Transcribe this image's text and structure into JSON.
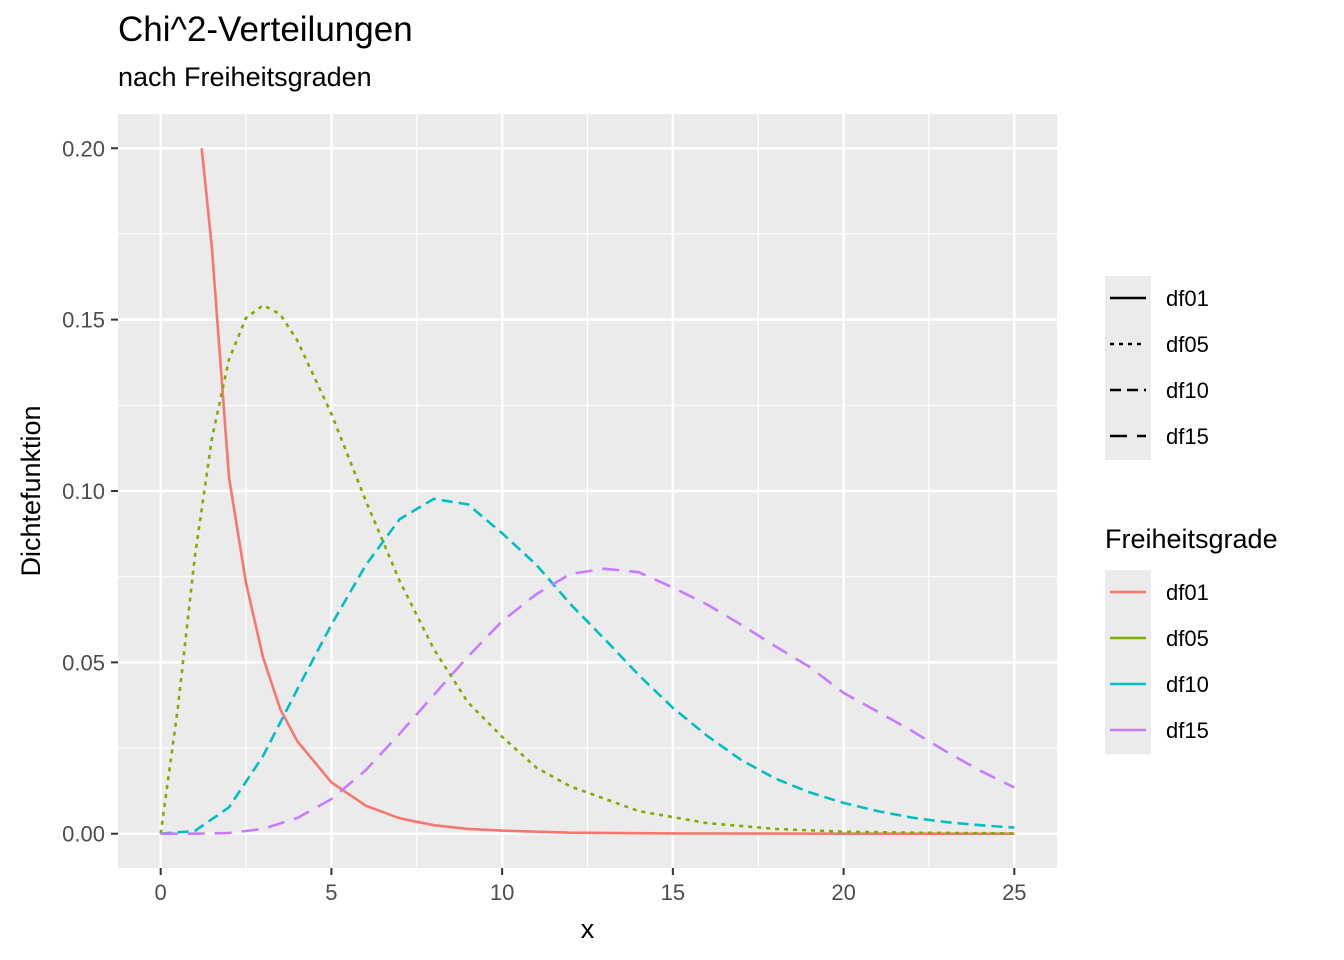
{
  "chart_data": {
    "type": "line",
    "title": "Chi^2-Verteilungen",
    "subtitle": "nach Freiheitsgraden",
    "xlabel": "x",
    "ylabel": "Dichtefunktion",
    "xlim": [
      -1.25,
      26.25
    ],
    "ylim": [
      -0.01,
      0.21
    ],
    "x_ticks": [
      0,
      5,
      10,
      15,
      20,
      25
    ],
    "x_tick_labels": [
      "0",
      "5",
      "10",
      "15",
      "20",
      "25"
    ],
    "y_ticks": [
      0.0,
      0.05,
      0.1,
      0.15,
      0.2
    ],
    "y_tick_labels": [
      "0.00",
      "0.05",
      "0.10",
      "0.15",
      "0.20"
    ],
    "grid": true,
    "legend_placement": "right",
    "legend_linetype_entries": [
      "df01",
      "df05",
      "df10",
      "df15"
    ],
    "legend_colour_title": "Freiheitsgrade",
    "series": [
      {
        "name": "df01",
        "color": "#F8766D",
        "linetype": "solid",
        "x": [
          1.2,
          1.5,
          2,
          2.5,
          3,
          3.5,
          4,
          5,
          6,
          7,
          8,
          9,
          10,
          12,
          15,
          20,
          25
        ],
        "y": [
          0.2,
          0.171,
          0.104,
          0.0732,
          0.0514,
          0.0364,
          0.027,
          0.015,
          0.0082,
          0.0045,
          0.0025,
          0.0014,
          0.0009,
          0.0003,
          0.0001,
          0.0,
          0.0
        ]
      },
      {
        "name": "df05",
        "color": "#7CAE00",
        "linetype": "dotted",
        "x": [
          0,
          0.5,
          1,
          1.5,
          2,
          2.5,
          3,
          3.5,
          4,
          5,
          6,
          7,
          8,
          9,
          10,
          11,
          12,
          14,
          16,
          18,
          20,
          22,
          25
        ],
        "y": [
          0,
          0.0366,
          0.0807,
          0.1153,
          0.1384,
          0.1505,
          0.1542,
          0.1516,
          0.1439,
          0.1225,
          0.0973,
          0.0737,
          0.0539,
          0.0383,
          0.0283,
          0.0193,
          0.0138,
          0.0066,
          0.0031,
          0.0014,
          0.0006,
          0.0003,
          0.0001
        ]
      },
      {
        "name": "df10",
        "color": "#00BFC4",
        "linetype": "dashed",
        "x": [
          0,
          1,
          2,
          3,
          4,
          5,
          6,
          7,
          8,
          9,
          10,
          11,
          12,
          13,
          14,
          15,
          16,
          17,
          18,
          19,
          20,
          21,
          22,
          23,
          24,
          25
        ],
        "y": [
          0,
          0.0008,
          0.0077,
          0.0227,
          0.0421,
          0.061,
          0.0783,
          0.0918,
          0.0977,
          0.0961,
          0.0877,
          0.0785,
          0.067,
          0.0568,
          0.0463,
          0.0367,
          0.0286,
          0.0215,
          0.0161,
          0.0121,
          0.009,
          0.0066,
          0.0047,
          0.0034,
          0.0025,
          0.0018
        ]
      },
      {
        "name": "df15",
        "color": "#C77CFF",
        "linetype": "longdash",
        "x": [
          0,
          1,
          2,
          3,
          4,
          5,
          6,
          7,
          8,
          9,
          10,
          11,
          12,
          13,
          14,
          15,
          16,
          17,
          18,
          19,
          20,
          21,
          22,
          23,
          24,
          25
        ],
        "y": [
          0,
          0.0,
          0.0002,
          0.0014,
          0.0046,
          0.0101,
          0.0185,
          0.0292,
          0.0405,
          0.0517,
          0.062,
          0.0699,
          0.0758,
          0.0773,
          0.0763,
          0.0718,
          0.0669,
          0.061,
          0.0547,
          0.0487,
          0.0411,
          0.0356,
          0.03,
          0.024,
          0.0184,
          0.0135
        ]
      }
    ]
  }
}
